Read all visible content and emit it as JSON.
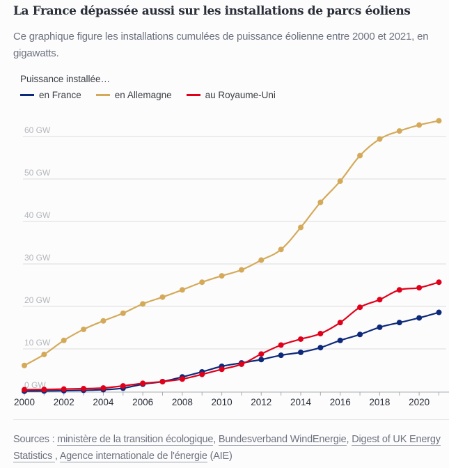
{
  "title": "La France dépassée aussi sur les installations de parcs éoliens",
  "subtitle": "Ce graphique figure les installations cumulées de puissance éolienne entre 2000 et 2021, en gigawatts.",
  "legend": {
    "title": "Puissance installée…",
    "items": [
      {
        "label": "en France",
        "color": "#0d2a7a"
      },
      {
        "label": "en Allemagne",
        "color": "#d4aa5a"
      },
      {
        "label": "au Royaume-Uni",
        "color": "#e0001a"
      }
    ]
  },
  "sources": {
    "prefix": "Sources : ",
    "links": [
      {
        "label": "ministère de la transition écologique"
      },
      {
        "label": "Bundesverband WindEnergie"
      },
      {
        "label": "Digest of UK Energy Statistics "
      },
      {
        "label": "Agence internationale de l'énergie"
      }
    ],
    "sep1": ", ",
    "sep2": ", ",
    "sep3": ", ",
    "suffix": " (AIE)"
  },
  "chart_data": {
    "type": "line",
    "title": "La France dépassée aussi sur les installations de parcs éoliens",
    "xlabel": "",
    "ylabel": "Puissance installée (GW)",
    "x": [
      2000,
      2001,
      2002,
      2003,
      2004,
      2005,
      2006,
      2007,
      2008,
      2009,
      2010,
      2011,
      2012,
      2013,
      2014,
      2015,
      2016,
      2017,
      2018,
      2019,
      2020,
      2021
    ],
    "xticks": [
      "2000",
      "2002",
      "2004",
      "2006",
      "2008",
      "2010",
      "2012",
      "2014",
      "2016",
      "2018",
      "2020"
    ],
    "yticks": [
      "0 GW",
      "10 GW",
      "20 GW",
      "30 GW",
      "40 GW",
      "50 GW",
      "60 GW"
    ],
    "ytick_values": [
      0,
      10,
      20,
      30,
      40,
      50,
      60
    ],
    "ylim": [
      0,
      65
    ],
    "xlim": [
      2000,
      2021
    ],
    "grid": true,
    "legend_position": "top-left",
    "series": [
      {
        "name": "en France",
        "color": "#0d2a7a",
        "values": [
          0.05,
          0.1,
          0.15,
          0.25,
          0.4,
          0.75,
          1.7,
          2.3,
          3.4,
          4.6,
          5.9,
          6.7,
          7.5,
          8.5,
          9.2,
          10.3,
          12.0,
          13.4,
          15.1,
          16.2,
          17.3,
          18.6
        ]
      },
      {
        "name": "en Allemagne",
        "color": "#d4aa5a",
        "values": [
          6.1,
          8.7,
          12.0,
          14.6,
          16.6,
          18.4,
          20.6,
          22.2,
          23.9,
          25.7,
          27.2,
          28.6,
          30.9,
          33.4,
          38.6,
          44.5,
          49.5,
          55.5,
          59.4,
          61.3,
          62.7,
          63.7
        ]
      },
      {
        "name": "au Royaume-Uni",
        "color": "#e0001a",
        "values": [
          0.4,
          0.45,
          0.55,
          0.65,
          0.8,
          1.3,
          1.9,
          2.3,
          2.9,
          4.0,
          5.2,
          6.4,
          8.8,
          10.9,
          12.3,
          13.6,
          16.2,
          19.8,
          21.6,
          23.9,
          24.4,
          25.7
        ]
      }
    ]
  }
}
